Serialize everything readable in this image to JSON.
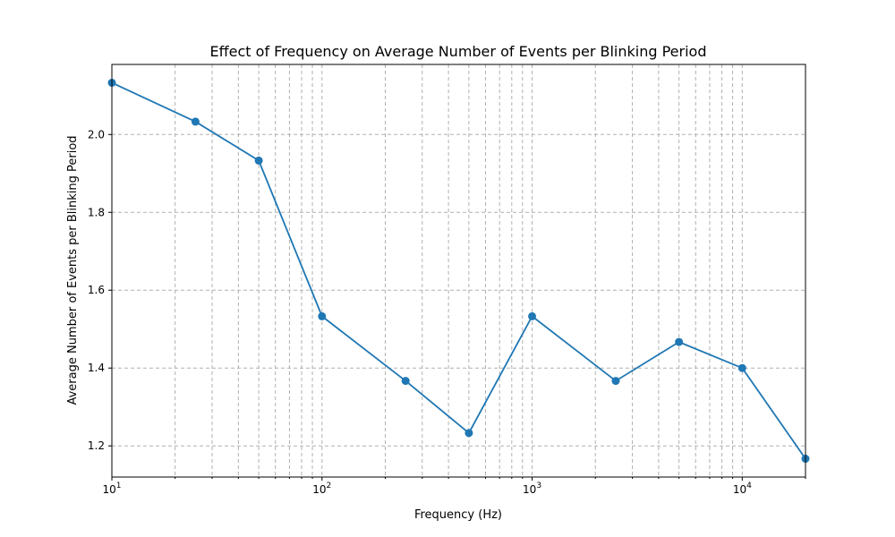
{
  "chart_data": {
    "type": "line",
    "title": "Effect of Frequency on Average Number of Events per Blinking Period",
    "xlabel": "Frequency (Hz)",
    "ylabel": "Average Number of Events per Blinking Period",
    "x_scale": "log",
    "xlim": [
      10,
      20000
    ],
    "ylim": [
      1.12,
      2.18
    ],
    "x_major_ticks": [
      {
        "value": 10,
        "base": "10",
        "exp": "1"
      },
      {
        "value": 100,
        "base": "10",
        "exp": "2"
      },
      {
        "value": 1000,
        "base": "10",
        "exp": "3"
      },
      {
        "value": 10000,
        "base": "10",
        "exp": "4"
      }
    ],
    "y_ticks": [
      {
        "value": 1.2,
        "label": "1.2"
      },
      {
        "value": 1.4,
        "label": "1.4"
      },
      {
        "value": 1.6,
        "label": "1.6"
      },
      {
        "value": 1.8,
        "label": "1.8"
      },
      {
        "value": 2.0,
        "label": "2.0"
      }
    ],
    "grid": true,
    "series": [
      {
        "color": "#1f77b4",
        "marker": "circle",
        "x": [
          10,
          25,
          50,
          100,
          250,
          500,
          1000,
          2500,
          5000,
          10000,
          20000
        ],
        "y": [
          2.133,
          2.033,
          1.933,
          1.533,
          1.367,
          1.233,
          1.533,
          1.367,
          1.467,
          1.4,
          1.167
        ]
      }
    ]
  }
}
